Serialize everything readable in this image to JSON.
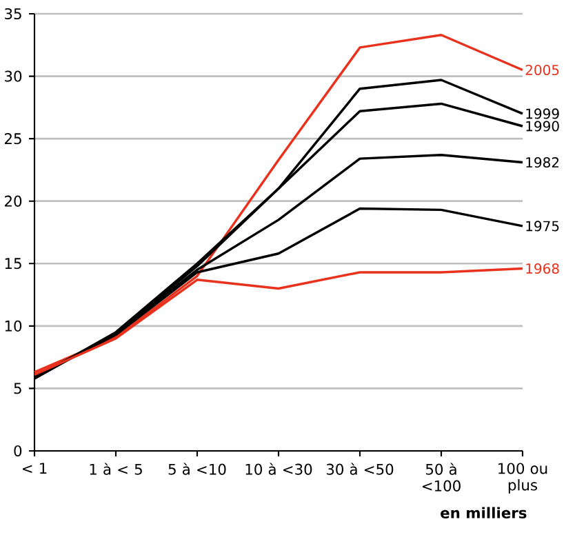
{
  "chart_data": {
    "type": "line",
    "xlabel": "en milliers",
    "categories": [
      "< 1",
      "1 à < 5",
      "5 à <10",
      "10 à <30",
      "30  à <50",
      "50 à <100",
      "100 ou plus"
    ],
    "series": [
      {
        "name": "2005",
        "color": "#e8321e",
        "values": [
          6.3,
          9.1,
          14.0,
          23.3,
          32.3,
          33.3,
          30.5
        ]
      },
      {
        "name": "1999",
        "color": "#000000",
        "values": [
          5.8,
          9.5,
          15.0,
          21.0,
          29.0,
          29.7,
          27.0
        ]
      },
      {
        "name": "1990",
        "color": "#000000",
        "values": [
          5.9,
          9.4,
          14.8,
          21.0,
          27.2,
          27.8,
          26.0
        ]
      },
      {
        "name": "1982",
        "color": "#000000",
        "values": [
          5.8,
          9.4,
          14.5,
          18.5,
          23.4,
          23.7,
          23.1
        ]
      },
      {
        "name": "1975",
        "color": "#000000",
        "values": [
          5.9,
          9.3,
          14.3,
          15.8,
          19.4,
          19.3,
          18.0
        ]
      },
      {
        "name": "1968",
        "color": "#e8321e",
        "values": [
          6.1,
          9.0,
          13.7,
          13.0,
          14.3,
          14.3,
          14.6
        ]
      }
    ],
    "ylim": [
      0,
      35
    ],
    "yticks": [
      0,
      5,
      10,
      15,
      20,
      25,
      30,
      35
    ],
    "grid": "y",
    "marker": "none",
    "line_style": "solid"
  }
}
